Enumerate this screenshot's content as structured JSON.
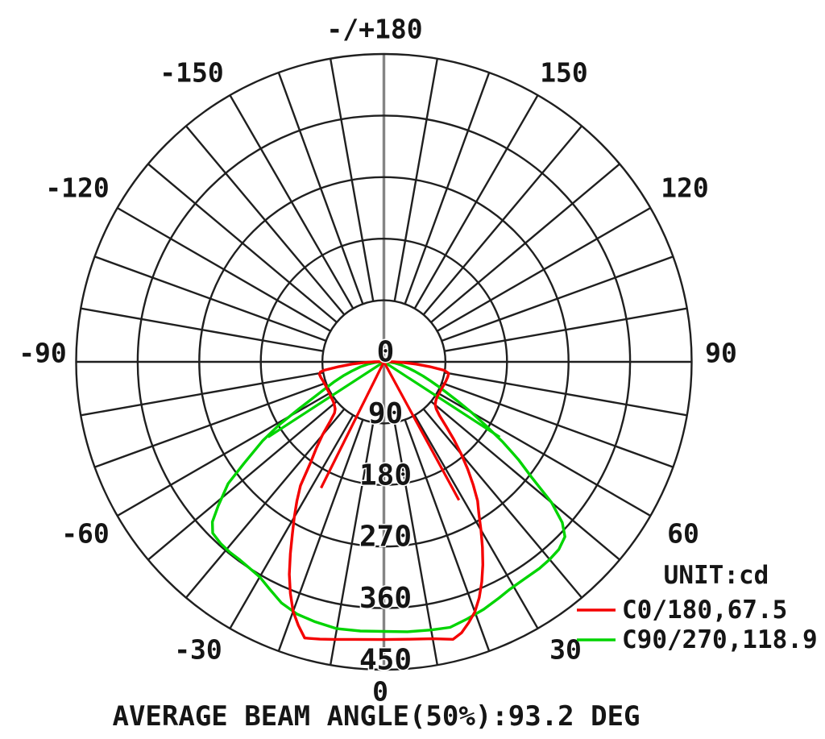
{
  "colors": {
    "background": "#ffffff",
    "grid": "#1f1f1f",
    "axis_vertical": "#858585",
    "text": "#151515",
    "red_series": "#f40000",
    "green_series": "#00d400"
  },
  "chart_data": {
    "type": "line",
    "variant": "polar-photometric-intensity-distribution",
    "unit_label": "UNIT:cd",
    "caption": "AVERAGE BEAM ANGLE(50%):93.2 DEG",
    "average_beam_angle_deg": 93.2,
    "radial_axis": {
      "unit": "cd",
      "min": 0,
      "max": 450,
      "ring_step": 90,
      "tick_labels": [
        "0",
        "90",
        "180",
        "270",
        "360",
        "450"
      ]
    },
    "angle_axis": {
      "spoke_step_deg": 10,
      "label_step_deg": 30,
      "zero_position": "bottom",
      "labels": [
        {
          "deg": 180,
          "text": "-/+180"
        },
        {
          "deg": -150,
          "text": "-150"
        },
        {
          "deg": -120,
          "text": "-120"
        },
        {
          "deg": -90,
          "text": "-90"
        },
        {
          "deg": -60,
          "text": "-60"
        },
        {
          "deg": -30,
          "text": "-30"
        },
        {
          "deg": 0,
          "text": "0"
        },
        {
          "deg": 30,
          "text": "30"
        },
        {
          "deg": 60,
          "text": "60"
        },
        {
          "deg": 90,
          "text": "90"
        },
        {
          "deg": 120,
          "text": "120"
        },
        {
          "deg": 150,
          "text": "150"
        }
      ]
    },
    "series": [
      {
        "name": "C0/180,67.5",
        "plane": "C0/180",
        "beam_angle_deg": 67.5,
        "color": "#f40000",
        "points": [
          [
            -96,
            0
          ],
          [
            -94,
            3
          ],
          [
            -92,
            7
          ],
          [
            -90,
            14
          ],
          [
            -88,
            28
          ],
          [
            -86,
            46
          ],
          [
            -84,
            66
          ],
          [
            -82,
            88
          ],
          [
            -81,
            94
          ],
          [
            -79,
            96
          ],
          [
            -76,
            95
          ],
          [
            -72,
            93
          ],
          [
            -68,
            92
          ],
          [
            -64,
            92
          ],
          [
            -60,
            92
          ],
          [
            -56,
            93
          ],
          [
            -52,
            94
          ],
          [
            -49,
            96
          ],
          [
            -46,
            99
          ],
          [
            -44,
            104
          ],
          [
            -42,
            118
          ],
          [
            -40,
            140
          ],
          [
            -38,
            161
          ],
          [
            -36,
            183
          ],
          [
            -34,
            218
          ],
          [
            -32,
            240
          ],
          [
            -30,
            262
          ],
          [
            -28,
            285
          ],
          [
            -26,
            312
          ],
          [
            -24,
            340
          ],
          [
            -22,
            365
          ],
          [
            -20,
            388
          ],
          [
            -18,
            405
          ],
          [
            -16,
            420
          ],
          [
            -13,
            416
          ],
          [
            -10,
            412
          ],
          [
            -6,
            408
          ],
          [
            0,
            406
          ],
          [
            5,
            407
          ],
          [
            10,
            411
          ],
          [
            14,
            418
          ],
          [
            16,
            412
          ],
          [
            18,
            401
          ],
          [
            20,
            389
          ],
          [
            22,
            372
          ],
          [
            24,
            352
          ],
          [
            26,
            330
          ],
          [
            28,
            307
          ],
          [
            30,
            284
          ],
          [
            32,
            262
          ],
          [
            34,
            245
          ],
          [
            36,
            222
          ],
          [
            38,
            199
          ],
          [
            40,
            176
          ],
          [
            42,
            153
          ],
          [
            44,
            131
          ],
          [
            46,
            113
          ],
          [
            48,
            103
          ],
          [
            50,
            98
          ],
          [
            53,
            95
          ],
          [
            57,
            93
          ],
          [
            61,
            93
          ],
          [
            65,
            93
          ],
          [
            69,
            94
          ],
          [
            73,
            95
          ],
          [
            77,
            96
          ],
          [
            80,
            96
          ],
          [
            82,
            89
          ],
          [
            84,
            67
          ],
          [
            86,
            47
          ],
          [
            88,
            29
          ],
          [
            90,
            15
          ],
          [
            92,
            7
          ],
          [
            94,
            3
          ],
          [
            96,
            0
          ]
        ],
        "closure_spikes": [
          {
            "deg": -26.5,
            "cd": 206
          },
          {
            "deg": 28.5,
            "cd": 230
          }
        ]
      },
      {
        "name": "C90/270,118.9",
        "plane": "C90/270",
        "beam_angle_deg": 118.9,
        "color": "#00d400",
        "points": [
          [
            -96,
            0
          ],
          [
            -93,
            2
          ],
          [
            -90,
            6
          ],
          [
            -86,
            13
          ],
          [
            -82,
            23
          ],
          [
            -78,
            35
          ],
          [
            -74,
            49
          ],
          [
            -71,
            63
          ],
          [
            -68,
            79
          ],
          [
            -65,
            98
          ],
          [
            -63,
            116
          ],
          [
            -61,
            143
          ],
          [
            -59,
            179
          ],
          [
            -57,
            211
          ],
          [
            -54,
            253
          ],
          [
            -52,
            289
          ],
          [
            -49,
            321
          ],
          [
            -47,
            343
          ],
          [
            -45,
            354
          ],
          [
            -42,
            357
          ],
          [
            -39,
            358
          ],
          [
            -36,
            358
          ],
          [
            -33,
            360
          ],
          [
            -30,
            363
          ],
          [
            -27,
            371
          ],
          [
            -23,
            383
          ],
          [
            -19,
            390
          ],
          [
            -15,
            393
          ],
          [
            -10,
            396
          ],
          [
            -5,
            395
          ],
          [
            0,
            394
          ],
          [
            5,
            396
          ],
          [
            10,
            398
          ],
          [
            14,
            400
          ],
          [
            18,
            395
          ],
          [
            22,
            390
          ],
          [
            26,
            384
          ],
          [
            29,
            380
          ],
          [
            33,
            378
          ],
          [
            37,
            378
          ],
          [
            40,
            377
          ],
          [
            43,
            375
          ],
          [
            46,
            368
          ],
          [
            48,
            351
          ],
          [
            50,
            320
          ],
          [
            52,
            274
          ],
          [
            54,
            243
          ],
          [
            56,
            210
          ],
          [
            58,
            176
          ],
          [
            60,
            148
          ],
          [
            62,
            122
          ],
          [
            64,
            101
          ],
          [
            66,
            85
          ],
          [
            68,
            72
          ],
          [
            70,
            61
          ],
          [
            73,
            47
          ],
          [
            76,
            36
          ],
          [
            80,
            25
          ],
          [
            84,
            15
          ],
          [
            88,
            7
          ],
          [
            92,
            3
          ],
          [
            96,
            0
          ]
        ],
        "closure_spikes": [
          {
            "deg": -57,
            "cd": 202
          },
          {
            "deg": 57,
            "cd": 202
          }
        ]
      }
    ],
    "legend": {
      "position": "bottom-right",
      "unit_label": "UNIT:cd",
      "entries": [
        {
          "label": "C0/180,67.5",
          "color": "#f40000"
        },
        {
          "label": "C90/270,118.9",
          "color": "#00d400"
        }
      ]
    }
  }
}
